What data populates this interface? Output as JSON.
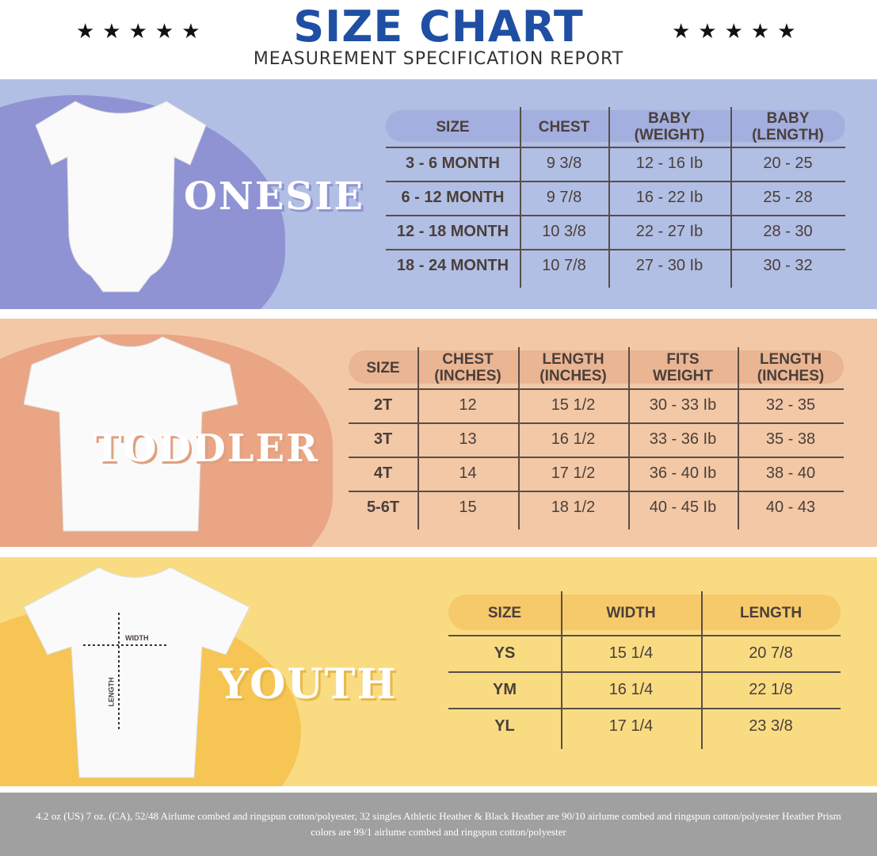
{
  "header": {
    "title": "SIZE CHART",
    "subtitle": "MEASUREMENT SPECIFICATION REPORT",
    "stars_left": "★★★★★",
    "stars_right": "★★★★★"
  },
  "colors": {
    "title": "#1f4fa3",
    "onesie_bg": "#b2bfe4",
    "toddler_bg": "#f3c8a6",
    "youth_bg": "#f9dc82",
    "footer_bg": "#a0a0a0"
  },
  "onesie": {
    "label": "ONESIE",
    "headers": [
      "SIZE",
      "CHEST",
      "BABY\n(WEIGHT)",
      "BABY\n(LENGTH)"
    ],
    "rows": [
      [
        "3 - 6 MONTH",
        "9 3/8",
        "12 - 16 Ib",
        "20 - 25"
      ],
      [
        "6 - 12 MONTH",
        "9 7/8",
        "16 - 22 Ib",
        "25 - 28"
      ],
      [
        "12 - 18  MONTH",
        "10 3/8",
        "22 - 27 Ib",
        "28 - 30"
      ],
      [
        "18 - 24 MONTH",
        "10 7/8",
        "27 - 30 Ib",
        "30 - 32"
      ]
    ]
  },
  "toddler": {
    "label": "TODDLER",
    "headers": [
      "SIZE",
      "CHEST\n(INCHES)",
      "LENGTH\n(INCHES)",
      "FITS\nWEIGHT",
      "LENGTH\n(INCHES)"
    ],
    "rows": [
      [
        "2T",
        "12",
        "15 1/2",
        "30 - 33 Ib",
        "32 - 35"
      ],
      [
        "3T",
        "13",
        "16 1/2",
        "33 - 36 Ib",
        "35 - 38"
      ],
      [
        "4T",
        "14",
        "17 1/2",
        "36 - 40 Ib",
        "38 - 40"
      ],
      [
        "5-6T",
        "15",
        "18 1/2",
        "40 - 45 Ib",
        "40 - 43"
      ]
    ]
  },
  "youth": {
    "label": "YOUTH",
    "width_label": "WIDTH",
    "length_label": "LENGTH",
    "headers": [
      "SIZE",
      "WIDTH",
      "LENGTH"
    ],
    "rows": [
      [
        "YS",
        "15 1/4",
        "20 7/8"
      ],
      [
        "YM",
        "16 1/4",
        "22 1/8"
      ],
      [
        "YL",
        "17 1/4",
        "23 3/8"
      ]
    ]
  },
  "footer": {
    "text": "4.2 oz (US) 7 oz. (CA), 52/48 Airlume combed and ringspun cotton/polyester, 32 singles Athletic Heather & Black Heather are 90/10 airlume combed and ringspun cotton/polyester Heather Prism colors are 99/1 airlume combed and ringspun cotton/polyester"
  }
}
